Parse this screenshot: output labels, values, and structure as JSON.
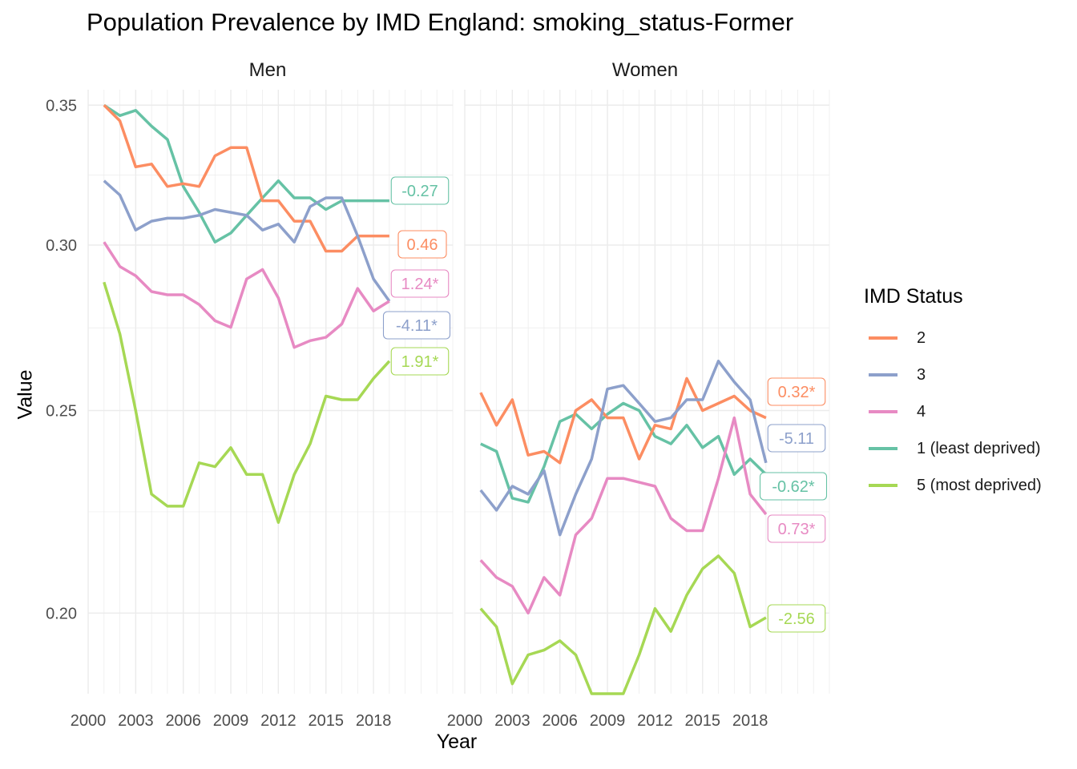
{
  "chart_data": {
    "type": "line",
    "title": "Population Prevalence by IMD England: smoking_status-Former",
    "xlabel": "Year",
    "ylabel": "Value",
    "legend_title": "IMD Status",
    "legend_position": "right",
    "grid": true,
    "scale_y": "log",
    "ylim": [
      0.183,
      0.356
    ],
    "xlim": [
      2000,
      2023
    ],
    "x_ticks": [
      2000,
      2003,
      2006,
      2009,
      2012,
      2015,
      2018
    ],
    "x_tick_labels": [
      "2000",
      "2003",
      "2006",
      "2009",
      "2012",
      "2015",
      "2018"
    ],
    "y_ticks": [
      0.2,
      0.25,
      0.3,
      0.35
    ],
    "y_tick_labels": [
      "0.20",
      "0.25",
      "0.30",
      "0.35"
    ],
    "x": [
      2001,
      2002,
      2003,
      2004,
      2005,
      2006,
      2007,
      2008,
      2009,
      2010,
      2011,
      2012,
      2013,
      2014,
      2015,
      2016,
      2017,
      2018,
      2019
    ],
    "colors": {
      "1 (least deprived)": "#66c2a5",
      "2": "#fc8d62",
      "3": "#8da0cb",
      "4": "#e78ac3",
      "5 (most deprived)": "#a6d854"
    },
    "panels": [
      {
        "name": "Men",
        "series": [
          {
            "name": "1 (least deprived)",
            "values": [
              0.35,
              0.346,
              0.348,
              0.342,
              0.337,
              0.32,
              0.311,
              0.301,
              0.304,
              0.31,
              0.316,
              0.322,
              0.316,
              0.316,
              0.312,
              0.315,
              0.315,
              0.315,
              0.315
            ]
          },
          {
            "name": "2",
            "values": [
              0.35,
              0.344,
              0.327,
              0.328,
              0.32,
              0.321,
              0.32,
              0.331,
              0.334,
              0.334,
              0.315,
              0.315,
              0.308,
              0.308,
              0.298,
              0.298,
              0.303,
              0.303,
              0.303
            ]
          },
          {
            "name": "3",
            "values": [
              0.322,
              0.317,
              0.305,
              0.308,
              0.309,
              0.309,
              0.31,
              0.312,
              0.311,
              0.31,
              0.305,
              0.307,
              0.301,
              0.313,
              0.316,
              0.316,
              0.303,
              0.289,
              0.282
            ]
          },
          {
            "name": "4",
            "values": [
              0.301,
              0.293,
              0.29,
              0.285,
              0.284,
              0.284,
              0.281,
              0.276,
              0.274,
              0.289,
              0.292,
              0.283,
              0.268,
              0.27,
              0.271,
              0.275,
              0.286,
              0.279,
              0.282
            ]
          },
          {
            "name": "5 (most deprived)",
            "values": [
              0.288,
              0.272,
              0.25,
              0.228,
              0.225,
              0.225,
              0.236,
              0.235,
              0.24,
              0.233,
              0.233,
              0.221,
              0.233,
              0.241,
              0.254,
              0.253,
              0.253,
              0.259,
              0.264
            ]
          }
        ],
        "labels": [
          {
            "series": "1 (least deprived)",
            "text": "-0.27"
          },
          {
            "series": "2",
            "text": "0.46"
          },
          {
            "series": "4",
            "text": "1.24*"
          },
          {
            "series": "3",
            "text": "-4.11*"
          },
          {
            "series": "5 (most deprived)",
            "text": "1.91*"
          }
        ]
      },
      {
        "name": "Women",
        "series": [
          {
            "name": "1 (least deprived)",
            "values": [
              0.241,
              0.239,
              0.227,
              0.226,
              0.235,
              0.247,
              0.249,
              0.245,
              0.249,
              0.252,
              0.25,
              0.243,
              0.241,
              0.246,
              0.24,
              0.243,
              0.233,
              0.237,
              0.233
            ]
          },
          {
            "name": "2",
            "values": [
              0.255,
              0.246,
              0.253,
              0.238,
              0.239,
              0.236,
              0.25,
              0.253,
              0.248,
              0.248,
              0.237,
              0.246,
              0.245,
              0.259,
              0.25,
              0.252,
              0.254,
              0.25,
              0.248
            ]
          },
          {
            "name": "3",
            "values": [
              0.229,
              0.224,
              0.23,
              0.228,
              0.234,
              0.218,
              0.228,
              0.237,
              0.256,
              0.257,
              0.252,
              0.247,
              0.248,
              0.253,
              0.253,
              0.264,
              0.258,
              0.253,
              0.236
            ]
          },
          {
            "name": "4",
            "values": [
              0.212,
              0.208,
              0.206,
              0.2,
              0.208,
              0.204,
              0.218,
              0.222,
              0.232,
              0.232,
              0.231,
              0.23,
              0.222,
              0.219,
              0.219,
              0.232,
              0.248,
              0.228,
              0.223
            ]
          },
          {
            "name": "5 (most deprived)",
            "values": [
              0.201,
              0.197,
              0.185,
              0.191,
              0.192,
              0.194,
              0.191,
              0.183,
              0.183,
              0.183,
              0.191,
              0.201,
              0.196,
              0.204,
              0.21,
              0.213,
              0.209,
              0.197,
              0.199
            ]
          }
        ],
        "labels": [
          {
            "series": "2",
            "text": "0.32*"
          },
          {
            "series": "3",
            "text": "-5.11"
          },
          {
            "series": "1 (least deprived)",
            "text": "-0.62*"
          },
          {
            "series": "4",
            "text": "0.73*"
          },
          {
            "series": "5 (most deprived)",
            "text": "-2.56"
          }
        ]
      }
    ]
  }
}
